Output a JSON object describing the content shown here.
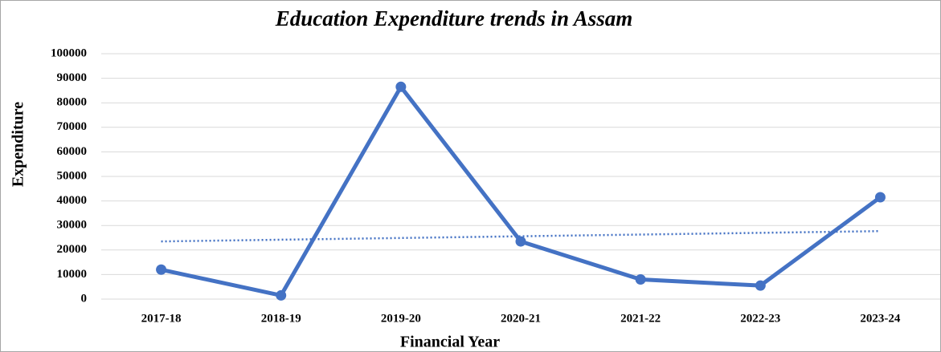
{
  "chart_data": {
    "type": "line",
    "title": "Education Expenditure trends in Assam",
    "x_label": "Financial Year",
    "y_label": "Expenditure",
    "categories": [
      "2017-18",
      "2018-19",
      "2019-20",
      "2020-21",
      "2021-22",
      "2022-23",
      "2023-24"
    ],
    "series": [
      {
        "color": "#4472c4",
        "values": [
          12000,
          1500,
          86500,
          23500,
          8000,
          5500,
          41500
        ]
      }
    ],
    "trendline": {
      "color": "#4472c4",
      "style": "dotted",
      "values": [
        23500,
        27700
      ]
    },
    "ylim": [
      0,
      100000
    ],
    "yticks": [
      0,
      10000,
      20000,
      30000,
      40000,
      50000,
      60000,
      70000,
      80000,
      90000,
      100000
    ],
    "grid": true
  }
}
